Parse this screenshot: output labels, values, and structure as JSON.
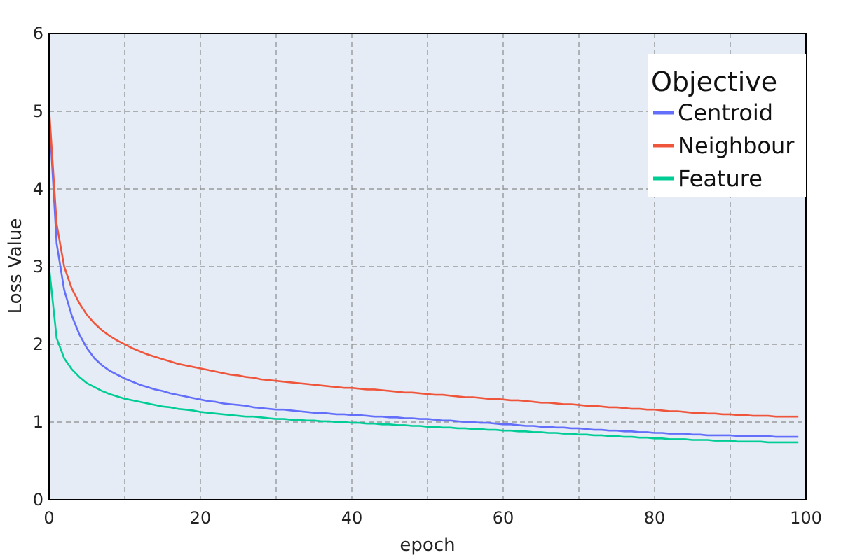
{
  "chart_data": {
    "type": "line",
    "xlabel": "epoch",
    "ylabel": "Loss Value",
    "xlim": [
      0,
      100
    ],
    "ylim": [
      0,
      6
    ],
    "xticks": [
      0,
      20,
      40,
      60,
      80,
      100
    ],
    "yticks": [
      0,
      1,
      2,
      3,
      4,
      5,
      6
    ],
    "grid": true,
    "legend": {
      "title": "Objective",
      "placement": "top-right"
    },
    "x": [
      0,
      1,
      2,
      3,
      4,
      5,
      6,
      7,
      8,
      9,
      10,
      11,
      12,
      13,
      14,
      15,
      16,
      17,
      18,
      19,
      20,
      21,
      22,
      23,
      24,
      25,
      26,
      27,
      28,
      29,
      30,
      31,
      32,
      33,
      34,
      35,
      36,
      37,
      38,
      39,
      40,
      41,
      42,
      43,
      44,
      45,
      46,
      47,
      48,
      49,
      50,
      51,
      52,
      53,
      54,
      55,
      56,
      57,
      58,
      59,
      60,
      61,
      62,
      63,
      64,
      65,
      66,
      67,
      68,
      69,
      70,
      71,
      72,
      73,
      74,
      75,
      76,
      77,
      78,
      79,
      80,
      81,
      82,
      83,
      84,
      85,
      86,
      87,
      88,
      89,
      90,
      91,
      92,
      93,
      94,
      95,
      96,
      97,
      98,
      99
    ],
    "series": [
      {
        "name": "Centroid",
        "color": "#636efa",
        "values": [
          5.0,
          3.3,
          2.7,
          2.37,
          2.13,
          1.95,
          1.82,
          1.73,
          1.66,
          1.61,
          1.56,
          1.52,
          1.48,
          1.45,
          1.42,
          1.4,
          1.37,
          1.35,
          1.33,
          1.31,
          1.29,
          1.27,
          1.26,
          1.24,
          1.23,
          1.22,
          1.21,
          1.19,
          1.18,
          1.17,
          1.16,
          1.16,
          1.15,
          1.14,
          1.13,
          1.12,
          1.12,
          1.11,
          1.1,
          1.1,
          1.09,
          1.09,
          1.08,
          1.07,
          1.07,
          1.06,
          1.06,
          1.05,
          1.05,
          1.04,
          1.04,
          1.03,
          1.02,
          1.02,
          1.01,
          1.0,
          1.0,
          0.99,
          0.99,
          0.98,
          0.97,
          0.97,
          0.96,
          0.95,
          0.95,
          0.94,
          0.94,
          0.93,
          0.93,
          0.92,
          0.92,
          0.91,
          0.9,
          0.9,
          0.89,
          0.89,
          0.88,
          0.88,
          0.87,
          0.87,
          0.86,
          0.86,
          0.85,
          0.85,
          0.85,
          0.84,
          0.84,
          0.83,
          0.83,
          0.83,
          0.83,
          0.82,
          0.82,
          0.82,
          0.82,
          0.82,
          0.81,
          0.81,
          0.81,
          0.81
        ]
      },
      {
        "name": "Neighbour",
        "color": "#ef553b",
        "values": [
          5.05,
          3.55,
          3.0,
          2.72,
          2.53,
          2.38,
          2.27,
          2.18,
          2.11,
          2.05,
          2.0,
          1.95,
          1.91,
          1.87,
          1.84,
          1.81,
          1.78,
          1.75,
          1.73,
          1.71,
          1.69,
          1.67,
          1.65,
          1.63,
          1.61,
          1.6,
          1.58,
          1.57,
          1.55,
          1.54,
          1.53,
          1.52,
          1.51,
          1.5,
          1.49,
          1.48,
          1.47,
          1.46,
          1.45,
          1.44,
          1.44,
          1.43,
          1.42,
          1.42,
          1.41,
          1.4,
          1.39,
          1.38,
          1.38,
          1.37,
          1.36,
          1.35,
          1.35,
          1.34,
          1.33,
          1.32,
          1.32,
          1.31,
          1.3,
          1.3,
          1.29,
          1.28,
          1.28,
          1.27,
          1.26,
          1.25,
          1.25,
          1.24,
          1.23,
          1.23,
          1.22,
          1.21,
          1.21,
          1.2,
          1.19,
          1.19,
          1.18,
          1.17,
          1.17,
          1.16,
          1.16,
          1.15,
          1.14,
          1.14,
          1.13,
          1.12,
          1.12,
          1.11,
          1.11,
          1.1,
          1.1,
          1.09,
          1.09,
          1.08,
          1.08,
          1.08,
          1.07,
          1.07,
          1.07,
          1.07
        ]
      },
      {
        "name": "Feature",
        "color": "#00cc96",
        "values": [
          3.0,
          2.08,
          1.82,
          1.68,
          1.58,
          1.5,
          1.45,
          1.4,
          1.36,
          1.33,
          1.3,
          1.28,
          1.26,
          1.24,
          1.22,
          1.2,
          1.19,
          1.17,
          1.16,
          1.15,
          1.13,
          1.12,
          1.11,
          1.1,
          1.09,
          1.08,
          1.07,
          1.07,
          1.06,
          1.05,
          1.04,
          1.04,
          1.03,
          1.03,
          1.02,
          1.02,
          1.01,
          1.01,
          1.0,
          1.0,
          0.99,
          0.99,
          0.98,
          0.98,
          0.97,
          0.97,
          0.96,
          0.96,
          0.95,
          0.95,
          0.94,
          0.94,
          0.93,
          0.93,
          0.92,
          0.92,
          0.91,
          0.91,
          0.9,
          0.9,
          0.89,
          0.89,
          0.88,
          0.88,
          0.87,
          0.87,
          0.86,
          0.86,
          0.85,
          0.85,
          0.84,
          0.84,
          0.83,
          0.83,
          0.82,
          0.82,
          0.81,
          0.81,
          0.8,
          0.8,
          0.79,
          0.79,
          0.78,
          0.78,
          0.78,
          0.77,
          0.77,
          0.77,
          0.76,
          0.76,
          0.76,
          0.75,
          0.75,
          0.75,
          0.75,
          0.74,
          0.74,
          0.74,
          0.74,
          0.74
        ]
      }
    ]
  },
  "style": {
    "plot_bg": "#e5ecf6",
    "grid_color": "#8a8a8a",
    "axis_color": "#000000",
    "legend_bg": "#ffffff"
  }
}
